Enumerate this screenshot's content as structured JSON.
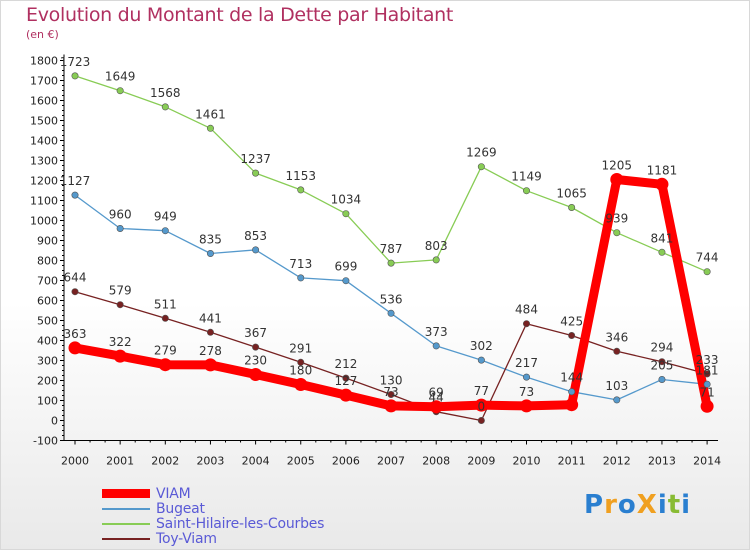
{
  "header": {
    "title": "Evolution du Montant de la Dette par Habitant",
    "subtitle": "(en €)"
  },
  "logo": {
    "text": "ProXiti",
    "letters": [
      {
        "ch": "P",
        "color": "#2a7fd0"
      },
      {
        "ch": "r",
        "color": "#f0a020"
      },
      {
        "ch": "o",
        "color": "#2a7fd0"
      },
      {
        "ch": "X",
        "color": "#f0a020"
      },
      {
        "ch": "i",
        "color": "#2a7fd0"
      },
      {
        "ch": "t",
        "color": "#88bb33"
      },
      {
        "ch": "i",
        "color": "#2a7fd0"
      }
    ]
  },
  "chart_data": {
    "type": "line",
    "title": "Evolution du Montant de la Dette par Habitant",
    "subtitle": "(en €)",
    "x": [
      "2000",
      "2001",
      "2002",
      "2003",
      "2004",
      "2005",
      "2006",
      "2007",
      "2008",
      "2009",
      "2010",
      "2011",
      "2012",
      "2013",
      "2014"
    ],
    "ylim": [
      -100,
      1800
    ],
    "yticks": [
      -100,
      0,
      100,
      200,
      300,
      400,
      500,
      600,
      700,
      800,
      900,
      1000,
      1100,
      1200,
      1300,
      1400,
      1500,
      1600,
      1700,
      1800
    ],
    "grid": false,
    "legend": "bottom-left",
    "series": [
      {
        "name": "Saint-Hilaire-les-Courbes",
        "color": "#88cc55",
        "values": [
          1723,
          1649,
          1568,
          1461,
          1237,
          1153,
          1034,
          787,
          803,
          1269,
          1149,
          1065,
          939,
          841,
          744
        ],
        "labels": [
          "1723",
          "1649",
          "1568",
          "1461",
          "1237",
          "1153",
          "1034",
          "787",
          "803",
          "1269",
          "1149",
          "1065",
          "939",
          "841",
          "744"
        ]
      },
      {
        "name": "Bugeat",
        "color": "#5599cc",
        "values": [
          1127,
          960,
          949,
          835,
          853,
          713,
          699,
          536,
          373,
          302,
          217,
          144,
          103,
          205,
          181
        ],
        "labels": [
          "1127",
          "960",
          "949",
          "835",
          "853",
          "713",
          "699",
          "536",
          "373",
          "302",
          "217",
          "144",
          "103",
          "205",
          "181"
        ]
      },
      {
        "name": "Toy-Viam",
        "color": "#772222",
        "values": [
          644,
          579,
          511,
          441,
          367,
          291,
          212,
          130,
          44,
          0,
          484,
          425,
          346,
          294,
          233
        ],
        "labels": [
          "644",
          "579",
          "511",
          "441",
          "367",
          "291",
          "212",
          "130",
          "44",
          "0",
          "484",
          "425",
          "346",
          "294",
          "233"
        ]
      },
      {
        "name": "VIAM",
        "color": "#ff0000",
        "values": [
          363,
          322,
          279,
          278,
          230,
          180,
          127,
          73,
          69,
          77,
          73,
          79,
          1205,
          1181,
          71
        ],
        "labels": [
          "363",
          "322",
          "279",
          "278",
          "230",
          "180",
          "127",
          "73",
          "69",
          "77",
          "73",
          "",
          "1205",
          "1181",
          "71"
        ]
      }
    ]
  }
}
